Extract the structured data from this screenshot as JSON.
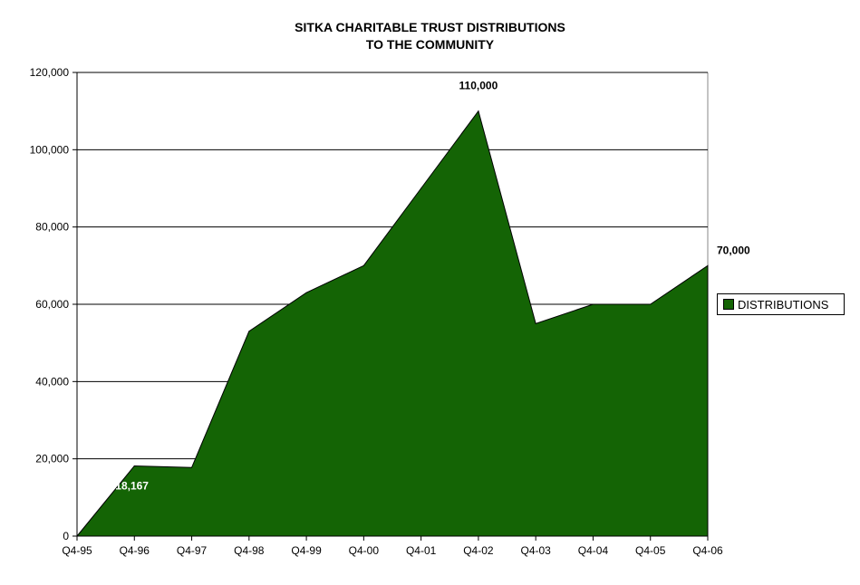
{
  "chart_data": {
    "type": "area",
    "title": "SITKA CHARITABLE TRUST DISTRIBUTIONS",
    "subtitle": "TO THE COMMUNITY",
    "categories": [
      "Q4-95",
      "Q4-96",
      "Q4-97",
      "Q4-98",
      "Q4-99",
      "Q4-00",
      "Q4-01",
      "Q4-02",
      "Q4-03",
      "Q4-04",
      "Q4-05",
      "Q4-06"
    ],
    "series": [
      {
        "name": "DISTRIBUTIONS",
        "values": [
          0,
          18167,
          17750,
          53000,
          63000,
          70000,
          90000,
          110000,
          55000,
          60000,
          60000,
          70000
        ],
        "color": "#146405"
      }
    ],
    "data_labels": [
      {
        "index": 1,
        "text": "18,167",
        "color": "#ffffff"
      },
      {
        "index": 7,
        "text": "110,000",
        "color": "#000000"
      },
      {
        "index": 11,
        "text": "70,000",
        "color": "#000000"
      }
    ],
    "y_ticks": [
      "0",
      "20,000",
      "40,000",
      "60,000",
      "80,000",
      "100,000",
      "120,000"
    ],
    "ylim": [
      0,
      120000
    ],
    "grid": true,
    "legend": "right",
    "xlabel": "",
    "ylabel": ""
  }
}
